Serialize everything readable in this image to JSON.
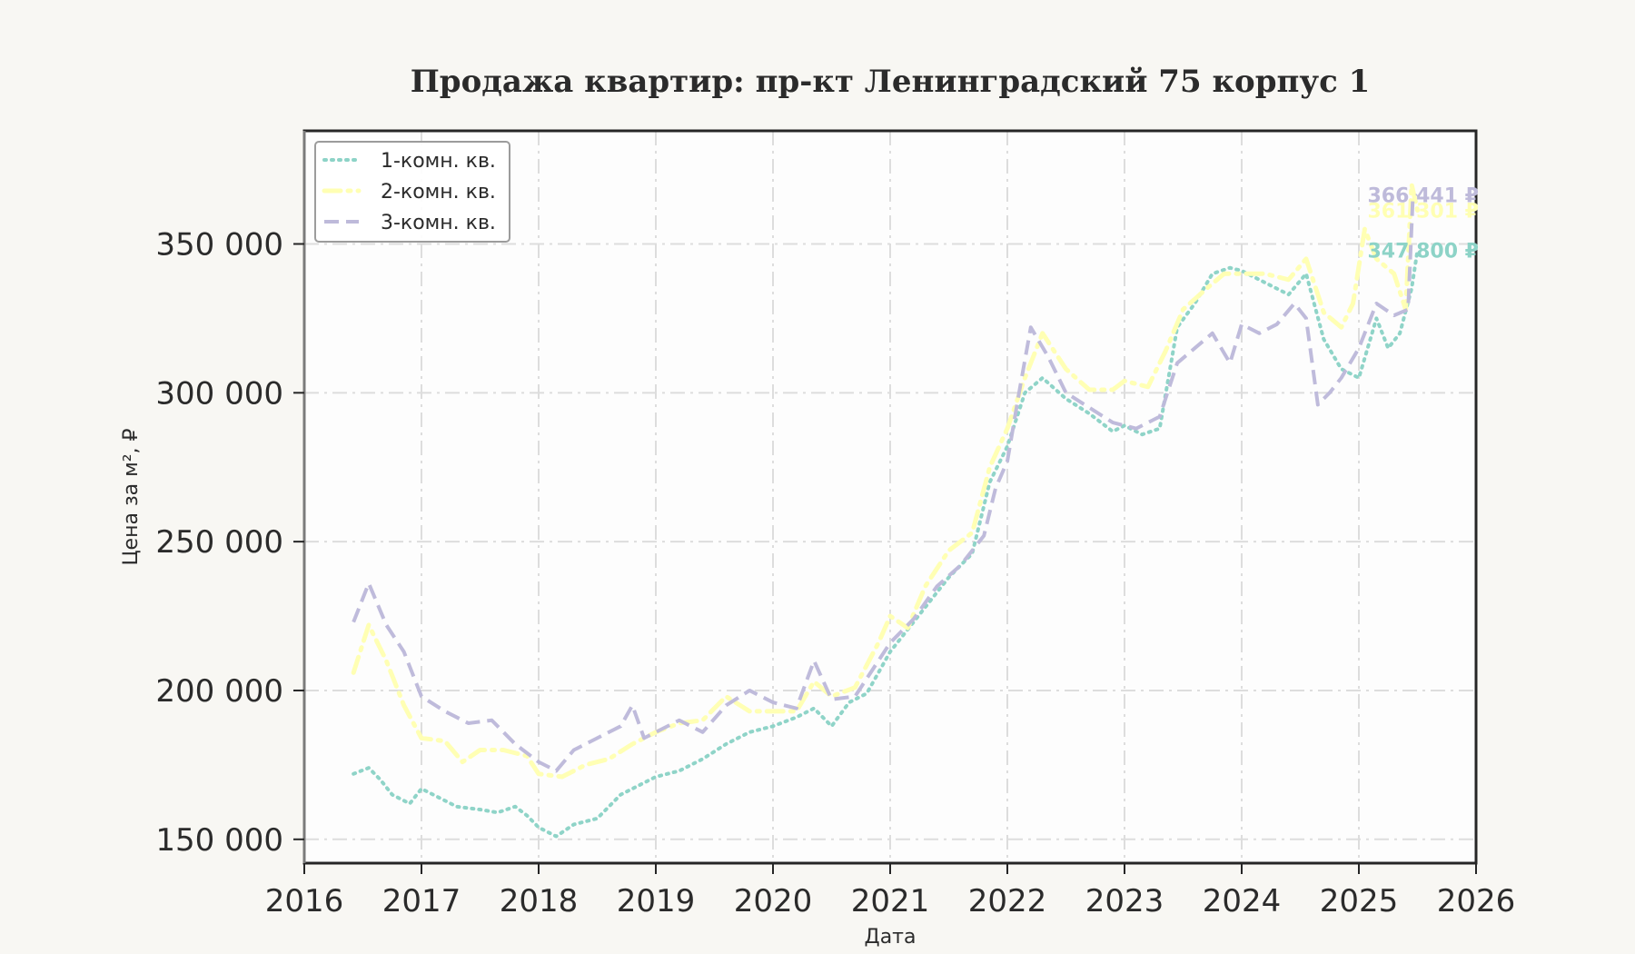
{
  "chart_data": {
    "type": "line",
    "title": "Продажа квартир: пр-кт Ленинградский 75 корпус 1",
    "xlabel": "Дата",
    "ylabel": "Цена за м², ₽",
    "xlim": [
      2016,
      2026
    ],
    "ylim": [
      142000,
      388000
    ],
    "x_ticks": [
      2016,
      2017,
      2018,
      2019,
      2020,
      2021,
      2022,
      2023,
      2024,
      2025,
      2026
    ],
    "x_tick_labels": [
      "2016",
      "2017",
      "2018",
      "2019",
      "2020",
      "2021",
      "2022",
      "2023",
      "2024",
      "2025",
      "2026"
    ],
    "y_ticks": [
      150000,
      200000,
      250000,
      300000,
      350000
    ],
    "y_tick_labels": [
      "150 000",
      "200 000",
      "250 000",
      "300 000",
      "350 000"
    ],
    "grid": true,
    "legend_position": "top-left",
    "background_color": "#fdfdfd",
    "series": [
      {
        "name": "1-комн. кв.",
        "color": "#8dd3c7",
        "line_style": "dotted",
        "end_label": "347 800 ₽",
        "end_value": 347800,
        "points": [
          [
            2016.42,
            172000
          ],
          [
            2016.55,
            174000
          ],
          [
            2016.65,
            170000
          ],
          [
            2016.75,
            165000
          ],
          [
            2016.9,
            162000
          ],
          [
            2017.0,
            167000
          ],
          [
            2017.15,
            164000
          ],
          [
            2017.3,
            161000
          ],
          [
            2017.5,
            160000
          ],
          [
            2017.65,
            159000
          ],
          [
            2017.8,
            161000
          ],
          [
            2017.9,
            158000
          ],
          [
            2018.0,
            154000
          ],
          [
            2018.15,
            151000
          ],
          [
            2018.3,
            155000
          ],
          [
            2018.5,
            157000
          ],
          [
            2018.7,
            165000
          ],
          [
            2018.85,
            168000
          ],
          [
            2019.0,
            171000
          ],
          [
            2019.2,
            173000
          ],
          [
            2019.4,
            177000
          ],
          [
            2019.6,
            182000
          ],
          [
            2019.8,
            186000
          ],
          [
            2020.0,
            188000
          ],
          [
            2020.2,
            191000
          ],
          [
            2020.35,
            194000
          ],
          [
            2020.5,
            188000
          ],
          [
            2020.65,
            196000
          ],
          [
            2020.8,
            199000
          ],
          [
            2021.0,
            213000
          ],
          [
            2021.1,
            218000
          ],
          [
            2021.3,
            228000
          ],
          [
            2021.5,
            238000
          ],
          [
            2021.7,
            246000
          ],
          [
            2021.85,
            270000
          ],
          [
            2022.0,
            282000
          ],
          [
            2022.15,
            300000
          ],
          [
            2022.3,
            305000
          ],
          [
            2022.5,
            298000
          ],
          [
            2022.7,
            293000
          ],
          [
            2022.9,
            287000
          ],
          [
            2023.0,
            289000
          ],
          [
            2023.15,
            286000
          ],
          [
            2023.3,
            288000
          ],
          [
            2023.45,
            322000
          ],
          [
            2023.6,
            330000
          ],
          [
            2023.75,
            340000
          ],
          [
            2023.9,
            342000
          ],
          [
            2024.0,
            341000
          ],
          [
            2024.2,
            337000
          ],
          [
            2024.4,
            333000
          ],
          [
            2024.55,
            340000
          ],
          [
            2024.7,
            318000
          ],
          [
            2024.85,
            308000
          ],
          [
            2025.0,
            305000
          ],
          [
            2025.15,
            325000
          ],
          [
            2025.25,
            315000
          ],
          [
            2025.35,
            320000
          ],
          [
            2025.45,
            335000
          ],
          [
            2025.5,
            347800
          ]
        ]
      },
      {
        "name": "2-комн. кв.",
        "color": "#ffffb3",
        "line_style": "dashdot",
        "end_label": "361 301 ₽",
        "end_value": 361301,
        "points": [
          [
            2016.42,
            206000
          ],
          [
            2016.55,
            222000
          ],
          [
            2016.7,
            210000
          ],
          [
            2016.85,
            195000
          ],
          [
            2017.0,
            184000
          ],
          [
            2017.2,
            183000
          ],
          [
            2017.35,
            176000
          ],
          [
            2017.5,
            180000
          ],
          [
            2017.7,
            180000
          ],
          [
            2017.9,
            178000
          ],
          [
            2018.0,
            172000
          ],
          [
            2018.2,
            171000
          ],
          [
            2018.4,
            175000
          ],
          [
            2018.6,
            177000
          ],
          [
            2018.8,
            182000
          ],
          [
            2019.0,
            186000
          ],
          [
            2019.2,
            189000
          ],
          [
            2019.4,
            190000
          ],
          [
            2019.6,
            198000
          ],
          [
            2019.8,
            193000
          ],
          [
            2020.0,
            193000
          ],
          [
            2020.2,
            193000
          ],
          [
            2020.35,
            203000
          ],
          [
            2020.5,
            198000
          ],
          [
            2020.7,
            201000
          ],
          [
            2020.9,
            216000
          ],
          [
            2021.0,
            225000
          ],
          [
            2021.15,
            221000
          ],
          [
            2021.3,
            235000
          ],
          [
            2021.5,
            247000
          ],
          [
            2021.7,
            253000
          ],
          [
            2021.85,
            275000
          ],
          [
            2022.0,
            288000
          ],
          [
            2022.15,
            305000
          ],
          [
            2022.3,
            320000
          ],
          [
            2022.5,
            308000
          ],
          [
            2022.7,
            301000
          ],
          [
            2022.9,
            301000
          ],
          [
            2023.0,
            304000
          ],
          [
            2023.2,
            302000
          ],
          [
            2023.35,
            314000
          ],
          [
            2023.5,
            328000
          ],
          [
            2023.7,
            335000
          ],
          [
            2023.85,
            340000
          ],
          [
            2024.0,
            340000
          ],
          [
            2024.2,
            340000
          ],
          [
            2024.4,
            338000
          ],
          [
            2024.55,
            345000
          ],
          [
            2024.7,
            327000
          ],
          [
            2024.85,
            322000
          ],
          [
            2024.95,
            330000
          ],
          [
            2025.05,
            355000
          ],
          [
            2025.15,
            345000
          ],
          [
            2025.3,
            340000
          ],
          [
            2025.4,
            328000
          ],
          [
            2025.45,
            370000
          ],
          [
            2025.5,
            361301
          ]
        ]
      },
      {
        "name": "3-комн. кв.",
        "color": "#bebada",
        "line_style": "dashed",
        "end_label": "366 441 ₽",
        "end_value": 366441,
        "points": [
          [
            2016.42,
            223000
          ],
          [
            2016.55,
            236000
          ],
          [
            2016.7,
            222000
          ],
          [
            2016.85,
            213000
          ],
          [
            2017.0,
            198000
          ],
          [
            2017.2,
            193000
          ],
          [
            2017.4,
            189000
          ],
          [
            2017.6,
            190000
          ],
          [
            2017.8,
            182000
          ],
          [
            2018.0,
            176000
          ],
          [
            2018.15,
            173000
          ],
          [
            2018.3,
            180000
          ],
          [
            2018.5,
            184000
          ],
          [
            2018.7,
            188000
          ],
          [
            2018.8,
            195000
          ],
          [
            2018.9,
            184000
          ],
          [
            2019.0,
            186000
          ],
          [
            2019.2,
            190000
          ],
          [
            2019.4,
            186000
          ],
          [
            2019.6,
            195000
          ],
          [
            2019.8,
            200000
          ],
          [
            2020.0,
            196000
          ],
          [
            2020.2,
            194000
          ],
          [
            2020.35,
            210000
          ],
          [
            2020.5,
            197000
          ],
          [
            2020.7,
            198000
          ],
          [
            2020.9,
            210000
          ],
          [
            2021.0,
            216000
          ],
          [
            2021.2,
            224000
          ],
          [
            2021.4,
            235000
          ],
          [
            2021.6,
            242000
          ],
          [
            2021.8,
            252000
          ],
          [
            2021.9,
            268000
          ],
          [
            2022.0,
            277000
          ],
          [
            2022.1,
            300000
          ],
          [
            2022.2,
            322000
          ],
          [
            2022.35,
            312000
          ],
          [
            2022.5,
            300000
          ],
          [
            2022.7,
            295000
          ],
          [
            2022.9,
            290000
          ],
          [
            2023.1,
            288000
          ],
          [
            2023.3,
            292000
          ],
          [
            2023.45,
            310000
          ],
          [
            2023.6,
            315000
          ],
          [
            2023.75,
            320000
          ],
          [
            2023.9,
            310000
          ],
          [
            2024.0,
            323000
          ],
          [
            2024.15,
            320000
          ],
          [
            2024.3,
            323000
          ],
          [
            2024.45,
            330000
          ],
          [
            2024.55,
            325000
          ],
          [
            2024.65,
            296000
          ],
          [
            2024.75,
            300000
          ],
          [
            2024.85,
            305000
          ],
          [
            2025.0,
            315000
          ],
          [
            2025.15,
            330000
          ],
          [
            2025.3,
            326000
          ],
          [
            2025.42,
            328000
          ],
          [
            2025.46,
            365000
          ],
          [
            2025.5,
            366441
          ]
        ]
      }
    ]
  }
}
